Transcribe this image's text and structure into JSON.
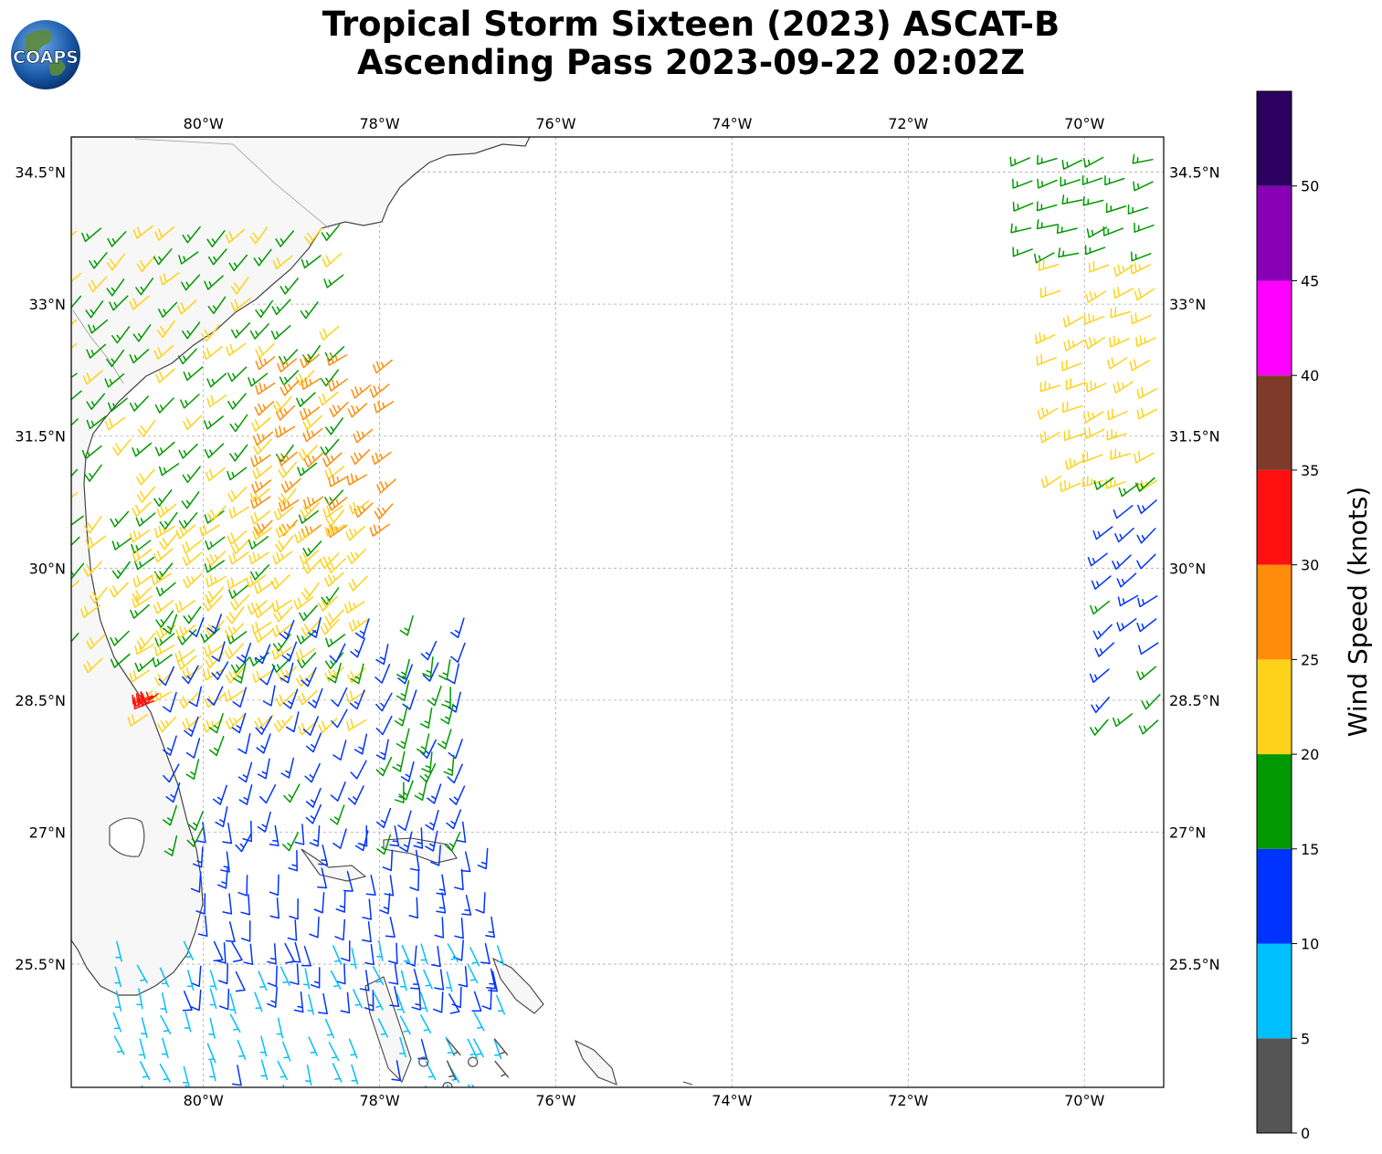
{
  "title": {
    "line1": "Tropical Storm Sixteen (2023) ASCAT-B",
    "line2": "Ascending Pass 2023-09-22 02:02Z"
  },
  "logo": {
    "text": "COAPS",
    "icon": "globe-logo"
  },
  "map": {
    "lon_ticks": [
      "80°W",
      "78°W",
      "76°W",
      "74°W",
      "72°W",
      "70°W"
    ],
    "lat_ticks": [
      "34.5°N",
      "33°N",
      "31.5°N",
      "30°N",
      "28.5°N",
      "27°N",
      "25.5°N"
    ],
    "lon_range": [
      -81.5,
      -69.1
    ],
    "lat_range": [
      24.1,
      34.9
    ],
    "grid": true
  },
  "colorbar": {
    "label": "Wind Speed (knots)",
    "ticks": [
      "0",
      "5",
      "10",
      "15",
      "20",
      "25",
      "30",
      "35",
      "40",
      "45",
      "50"
    ],
    "bins": [
      {
        "min": 0,
        "max": 5,
        "color": "#555555"
      },
      {
        "min": 5,
        "max": 10,
        "color": "#00bfff"
      },
      {
        "min": 10,
        "max": 15,
        "color": "#0033ff"
      },
      {
        "min": 15,
        "max": 20,
        "color": "#009900"
      },
      {
        "min": 20,
        "max": 25,
        "color": "#ffd21a"
      },
      {
        "min": 25,
        "max": 30,
        "color": "#ff8c0a"
      },
      {
        "min": 30,
        "max": 35,
        "color": "#ff1010"
      },
      {
        "min": 35,
        "max": 40,
        "color": "#7f3a2a"
      },
      {
        "min": 40,
        "max": 45,
        "color": "#ff00ff"
      },
      {
        "min": 45,
        "max": 50,
        "color": "#8800b5"
      },
      {
        "min": 50,
        "max": 55,
        "color": "#2b005f"
      }
    ]
  },
  "swaths": [
    {
      "name": "western-swath",
      "regions": [
        {
          "lon": [
            -81.4,
            -78.3
          ],
          "lat": [
            29.0,
            34.1
          ],
          "speed": 19,
          "dir": 225
        },
        {
          "lon": [
            -79.2,
            -77.8
          ],
          "lat": [
            30.5,
            32.5
          ],
          "speed": 27,
          "dir": 230
        },
        {
          "lon": [
            -80.6,
            -78.0
          ],
          "lat": [
            28.3,
            30.8
          ],
          "speed": 22,
          "dir": 230
        },
        {
          "lon": [
            -80.3,
            -77.0
          ],
          "lat": [
            27.0,
            29.6
          ],
          "speed": 13,
          "dir": 200
        },
        {
          "lon": [
            -77.7,
            -77.0
          ],
          "lat": [
            27.6,
            29.0
          ],
          "speed": 17,
          "dir": 190
        },
        {
          "lon": [
            -80.0,
            -76.6
          ],
          "lat": [
            25.2,
            27.3
          ],
          "speed": 12,
          "dir": 175
        },
        {
          "lon": [
            -81.0,
            -76.5
          ],
          "lat": [
            24.1,
            25.8
          ],
          "speed": 8,
          "dir": 160
        },
        {
          "lon": [
            -77.5,
            -76.5
          ],
          "lat": [
            24.1,
            24.8
          ],
          "speed": 3,
          "dir": 150
        },
        {
          "lon": [
            -80.6,
            -80.5
          ],
          "lat": [
            28.5,
            28.6
          ],
          "speed": 32,
          "dir": 240
        }
      ]
    },
    {
      "name": "eastern-swath",
      "regions": [
        {
          "lon": [
            -70.6,
            -69.1
          ],
          "lat": [
            33.6,
            34.8
          ],
          "speed": 17,
          "dir": 250
        },
        {
          "lon": [
            -70.3,
            -69.1
          ],
          "lat": [
            31.0,
            33.6
          ],
          "speed": 22,
          "dir": 245
        },
        {
          "lon": [
            -69.7,
            -69.1
          ],
          "lat": [
            28.3,
            31.0
          ],
          "speed": 14,
          "dir": 230
        }
      ]
    }
  ]
}
